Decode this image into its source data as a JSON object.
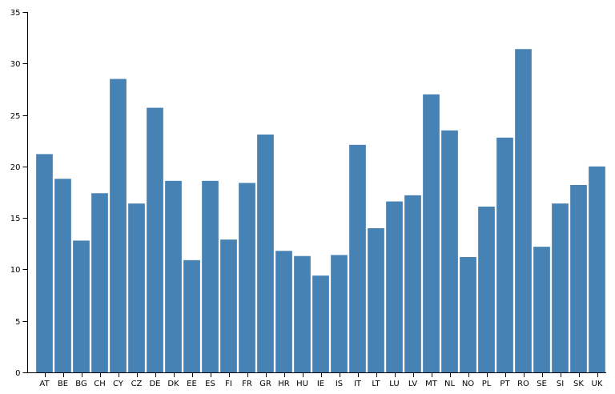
{
  "chart_data": {
    "type": "bar",
    "categories": [
      "AT",
      "BE",
      "BG",
      "CH",
      "CY",
      "CZ",
      "DE",
      "DK",
      "EE",
      "ES",
      "FI",
      "FR",
      "GR",
      "HR",
      "HU",
      "IE",
      "IS",
      "IT",
      "LT",
      "LU",
      "LV",
      "MT",
      "NL",
      "NO",
      "PL",
      "PT",
      "RO",
      "SE",
      "SI",
      "SK",
      "UK"
    ],
    "values": [
      21.2,
      18.8,
      12.8,
      17.4,
      28.5,
      16.4,
      25.7,
      18.6,
      10.9,
      18.6,
      12.9,
      18.4,
      23.1,
      11.8,
      11.3,
      9.4,
      11.4,
      22.1,
      14.0,
      16.6,
      17.2,
      27.0,
      23.5,
      11.2,
      16.1,
      22.8,
      31.4,
      12.2,
      16.4,
      18.2,
      20.0
    ],
    "color": "#4682b4",
    "ylim": [
      0,
      35
    ],
    "yticks": [
      0,
      5,
      10,
      15,
      20,
      25,
      30,
      35
    ],
    "grid": false
  }
}
